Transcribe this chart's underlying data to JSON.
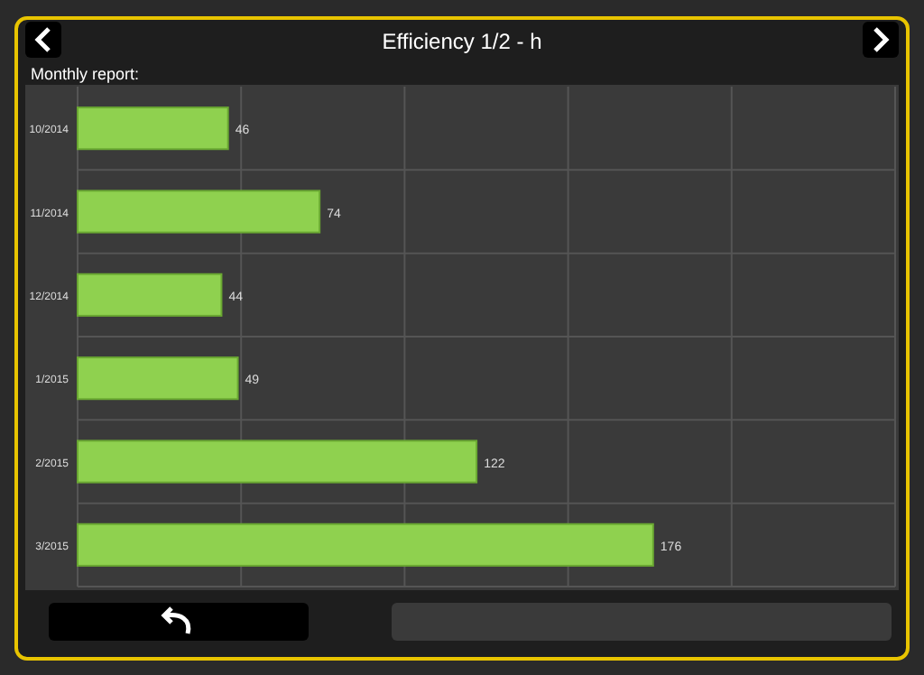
{
  "chart_data": {
    "type": "bar",
    "orientation": "horizontal",
    "title": "Efficiency 1/2 - h",
    "subtitle": "Monthly report:",
    "categories": [
      "10/2014",
      "11/2014",
      "12/2014",
      "1/2015",
      "2/2015",
      "3/2015"
    ],
    "values": [
      46,
      74,
      44,
      49,
      122,
      176
    ],
    "color": "#8fd14f",
    "data_labels": true,
    "xlim": [
      0,
      250
    ],
    "xticks": [
      {
        "value": 0,
        "label": null
      },
      {
        "value": 50,
        "label": null
      },
      {
        "value": 100,
        "label": null
      },
      {
        "value": 150,
        "label": null
      },
      {
        "value": 200,
        "label": null
      },
      {
        "value": 250,
        "label": null
      }
    ],
    "tick_labels": "y",
    "grid": true
  }
}
